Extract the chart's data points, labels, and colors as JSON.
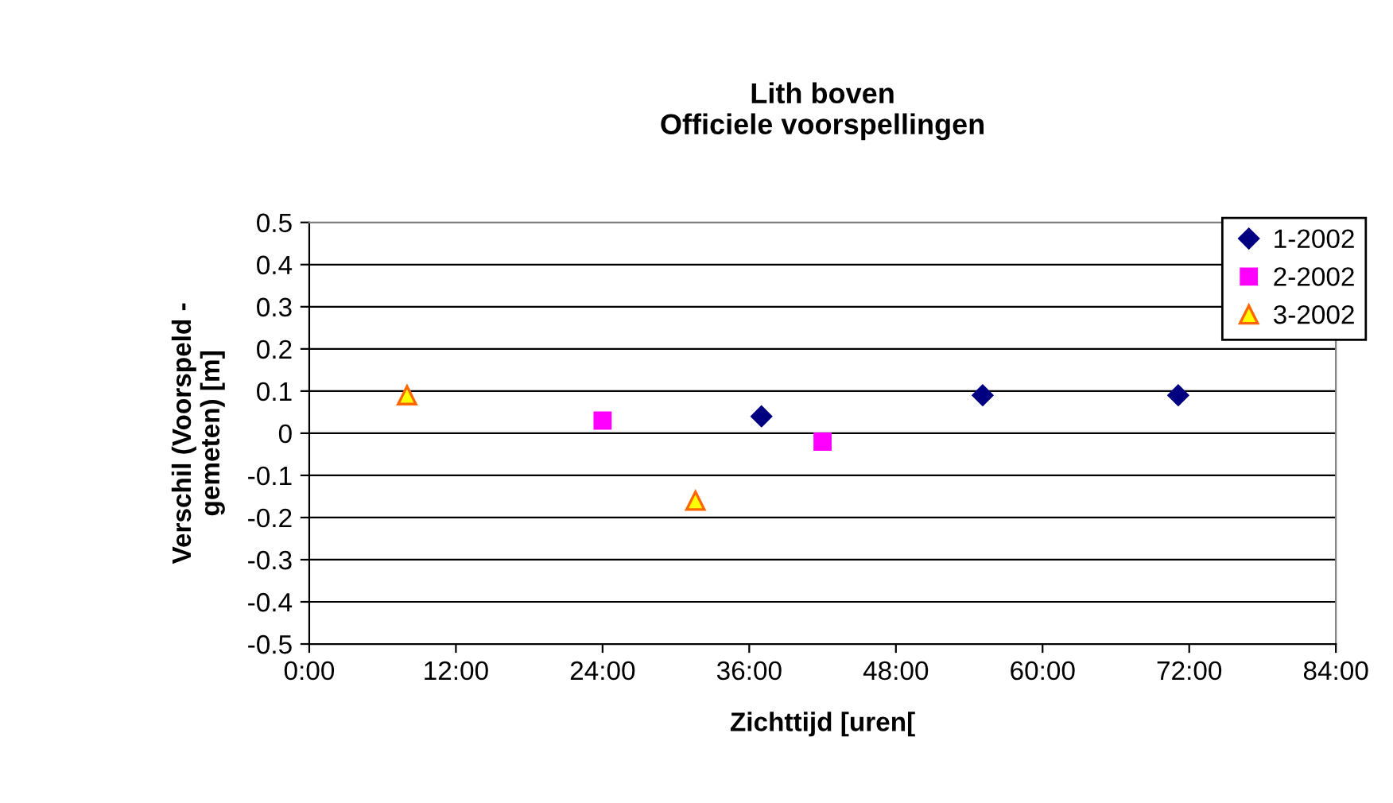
{
  "chart_data": {
    "type": "scatter",
    "title": "Lith boven\nOfficiele voorspellingen",
    "xlabel": "Zichttijd [uren[",
    "ylabel": "Verschil (Voorspeld -\ngemeten) [m]",
    "series": [
      {
        "name": "1-2002",
        "color": "#000080",
        "marker": "diamond",
        "x": [
          37.0,
          55.1,
          71.1
        ],
        "values": [
          0.04,
          0.09,
          0.09
        ]
      },
      {
        "name": "2-2002",
        "color": "#ff00ff",
        "marker": "square",
        "x": [
          24.0,
          42.0
        ],
        "values": [
          0.03,
          -0.02
        ]
      },
      {
        "name": "3-2002",
        "color": "#ffff00",
        "marker": "triangle",
        "x": [
          8.0,
          31.6
        ],
        "values": [
          0.09,
          -0.16
        ]
      }
    ],
    "xlim": [
      0,
      84
    ],
    "xticks": [
      {
        "value": 0,
        "label": "0:00"
      },
      {
        "value": 12,
        "label": "12:00"
      },
      {
        "value": 24,
        "label": "24:00"
      },
      {
        "value": 36,
        "label": "36:00"
      },
      {
        "value": 48,
        "label": "48:00"
      },
      {
        "value": 60,
        "label": "60:00"
      },
      {
        "value": 72,
        "label": "72:00"
      },
      {
        "value": 84,
        "label": "84:00"
      }
    ],
    "ylim": [
      -0.5,
      0.5
    ],
    "yticks": [
      -0.5,
      -0.4,
      -0.3,
      -0.2,
      -0.1,
      0,
      0.1,
      0.2,
      0.3,
      0.4,
      0.5
    ],
    "grid": "y",
    "legend": "top right"
  }
}
